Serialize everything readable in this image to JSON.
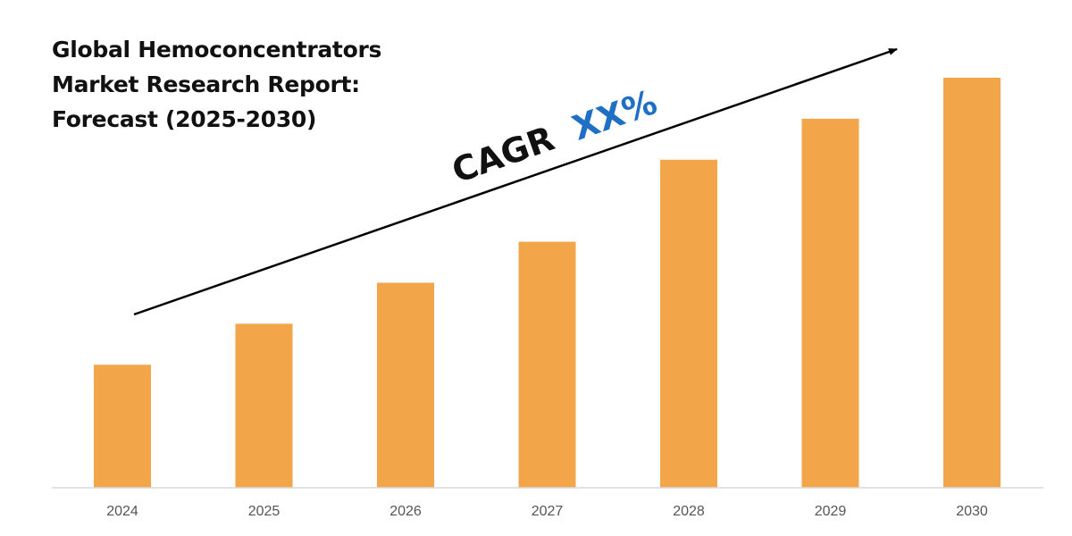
{
  "chart_data": {
    "type": "bar",
    "title_lines": [
      "Global Hemoconcentrators",
      "Market Research Report:",
      "Forecast (2025-2030)"
    ],
    "categories": [
      "2024",
      "2025",
      "2026",
      "2027",
      "2028",
      "2029",
      "2030"
    ],
    "values": [
      30,
      40,
      50,
      60,
      80,
      90,
      100
    ],
    "ylim": [
      0,
      100
    ],
    "xlabel": "",
    "ylabel": "",
    "grid": false,
    "annotation": {
      "prefix": "CAGR",
      "value": "XX%"
    },
    "colors": {
      "bar": "#F2A649",
      "axis": "#d9d9d9",
      "arrow": "#000000",
      "cagr_prefix": "#111111",
      "cagr_value": "#1F6FC5"
    }
  }
}
